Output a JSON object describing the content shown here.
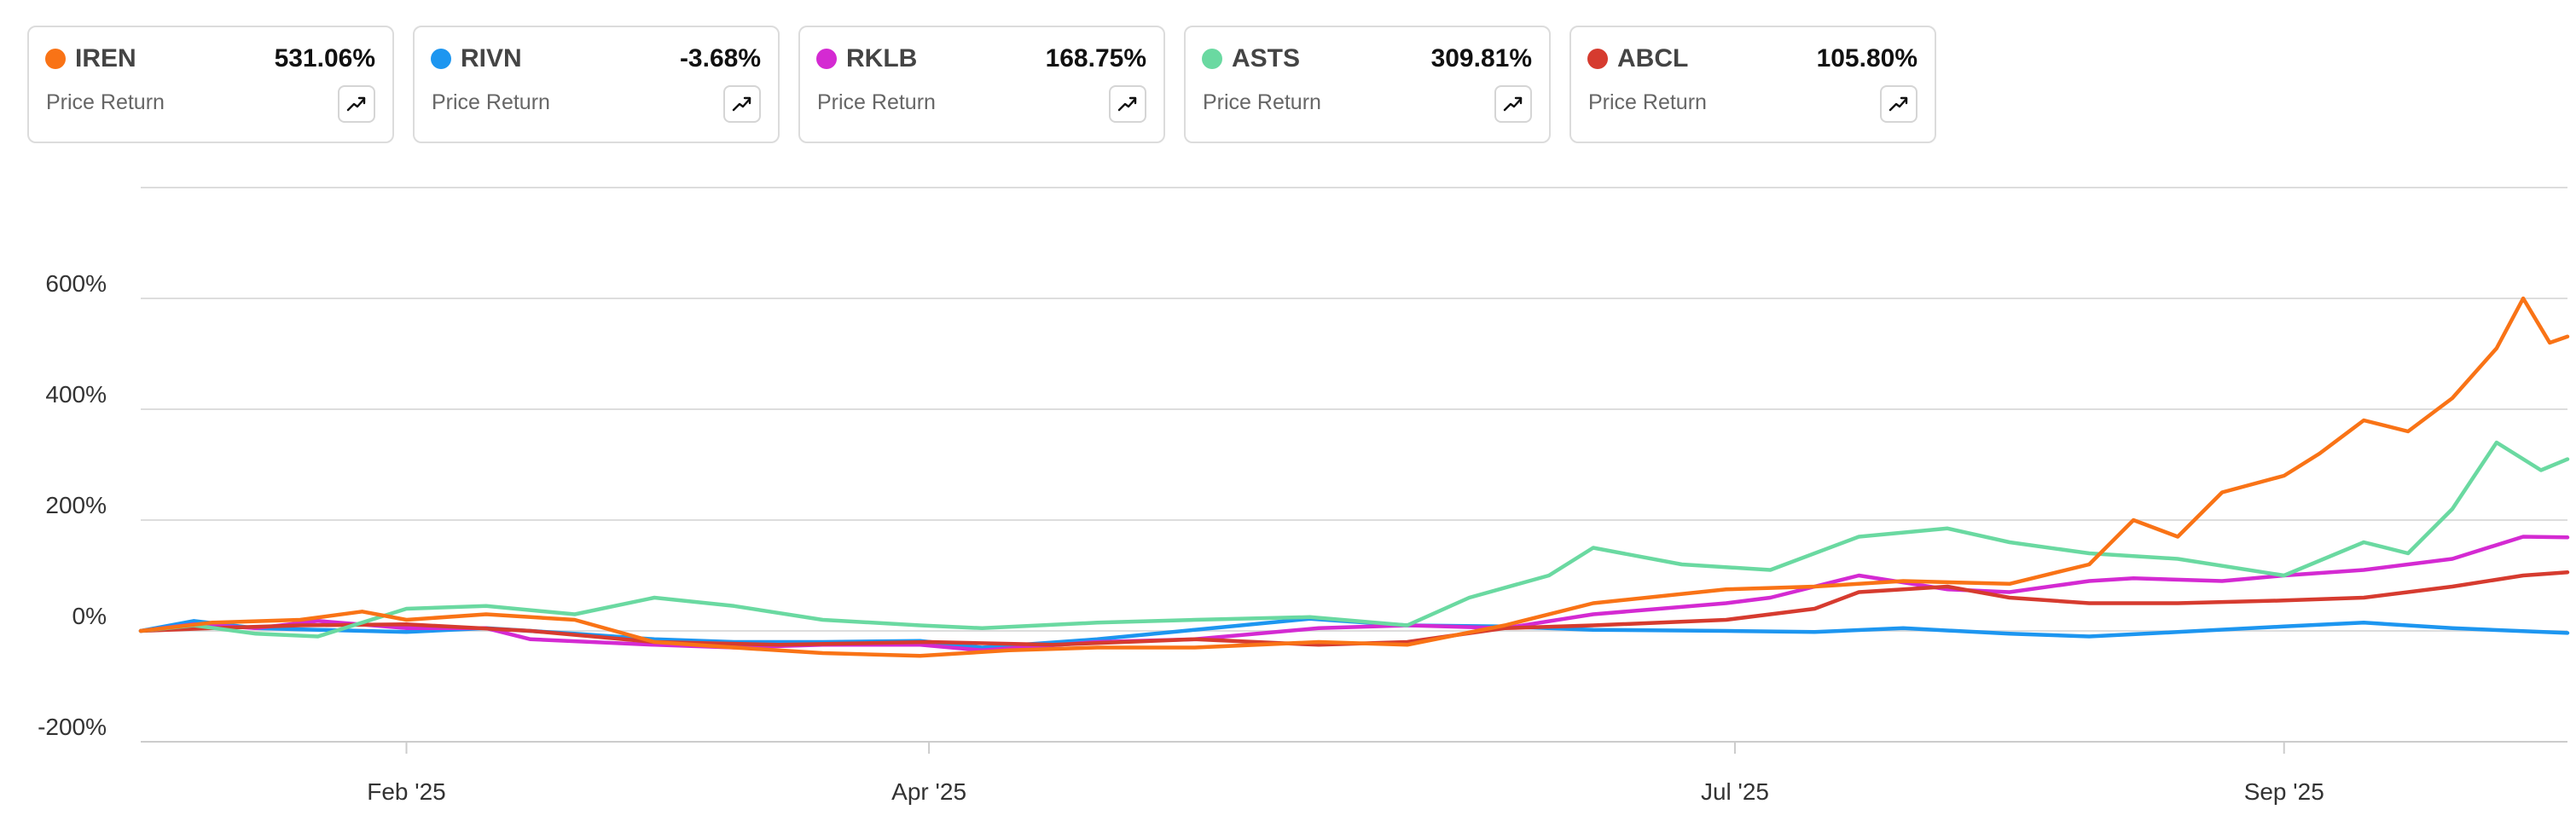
{
  "cards": [
    {
      "ticker": "IREN",
      "return": "531.06%",
      "label": "Price Return",
      "color": "#f97316",
      "icon": "trend-up-icon"
    },
    {
      "ticker": "RIVN",
      "return": "-3.68%",
      "label": "Price Return",
      "color": "#1d96f0",
      "icon": "trend-up-icon"
    },
    {
      "ticker": "RKLB",
      "return": "168.75%",
      "label": "Price Return",
      "color": "#d42ad2",
      "icon": "trend-up-icon"
    },
    {
      "ticker": "ASTS",
      "return": "309.81%",
      "label": "Price Return",
      "color": "#6ad9a1",
      "icon": "trend-up-icon"
    },
    {
      "ticker": "ABCL",
      "return": "105.80%",
      "label": "Price Return",
      "color": "#d63b2f",
      "icon": "trend-up-icon"
    }
  ],
  "chart_data": {
    "type": "line",
    "title": "",
    "xlabel": "",
    "ylabel": "",
    "ylim": [
      -200,
      800
    ],
    "yticks": [
      {
        "value": -200,
        "label": "-200%"
      },
      {
        "value": 0,
        "label": "0%"
      },
      {
        "value": 200,
        "label": "200%"
      },
      {
        "value": 400,
        "label": "400%"
      },
      {
        "value": 600,
        "label": "600%"
      }
    ],
    "xticks": [
      {
        "date": "2025-02-01",
        "label": "Feb '25"
      },
      {
        "date": "2025-04-01",
        "label": "Apr '25"
      },
      {
        "date": "2025-07-01",
        "label": "Jul '25"
      },
      {
        "date": "2025-09-01",
        "label": "Sep '25"
      }
    ],
    "xlim": [
      "2025-01-02",
      "2025-10-03"
    ],
    "grid": true,
    "legend": "top (cards)",
    "series": [
      {
        "name": "RIVN",
        "color": "#1d96f0",
        "points": [
          [
            "2025-01-02",
            0
          ],
          [
            "2025-01-08",
            18
          ],
          [
            "2025-01-15",
            5
          ],
          [
            "2025-01-22",
            2
          ],
          [
            "2025-02-01",
            -2
          ],
          [
            "2025-02-10",
            5
          ],
          [
            "2025-02-20",
            -5
          ],
          [
            "2025-03-01",
            -15
          ],
          [
            "2025-03-10",
            -20
          ],
          [
            "2025-03-20",
            -20
          ],
          [
            "2025-03-31",
            -18
          ],
          [
            "2025-04-07",
            -30
          ],
          [
            "2025-04-20",
            -15
          ],
          [
            "2025-05-01",
            2
          ],
          [
            "2025-05-14",
            22
          ],
          [
            "2025-05-25",
            10
          ],
          [
            "2025-06-05",
            8
          ],
          [
            "2025-06-15",
            2
          ],
          [
            "2025-06-30",
            0
          ],
          [
            "2025-07-10",
            -2
          ],
          [
            "2025-07-20",
            5
          ],
          [
            "2025-08-01",
            -5
          ],
          [
            "2025-08-10",
            -10
          ],
          [
            "2025-08-20",
            -2
          ],
          [
            "2025-09-01",
            8
          ],
          [
            "2025-09-10",
            15
          ],
          [
            "2025-09-20",
            5
          ],
          [
            "2025-10-03",
            -3.68
          ]
        ]
      },
      {
        "name": "RKLB",
        "color": "#d42ad2",
        "points": [
          [
            "2025-01-02",
            0
          ],
          [
            "2025-01-08",
            12
          ],
          [
            "2025-01-15",
            5
          ],
          [
            "2025-01-22",
            18
          ],
          [
            "2025-02-01",
            5
          ],
          [
            "2025-02-10",
            5
          ],
          [
            "2025-02-15",
            -15
          ],
          [
            "2025-03-01",
            -25
          ],
          [
            "2025-03-10",
            -30
          ],
          [
            "2025-03-20",
            -25
          ],
          [
            "2025-03-31",
            -25
          ],
          [
            "2025-04-07",
            -35
          ],
          [
            "2025-04-20",
            -20
          ],
          [
            "2025-05-01",
            -15
          ],
          [
            "2025-05-15",
            5
          ],
          [
            "2025-05-25",
            10
          ],
          [
            "2025-06-05",
            5
          ],
          [
            "2025-06-15",
            30
          ],
          [
            "2025-06-30",
            50
          ],
          [
            "2025-07-05",
            60
          ],
          [
            "2025-07-15",
            100
          ],
          [
            "2025-07-25",
            75
          ],
          [
            "2025-08-01",
            70
          ],
          [
            "2025-08-10",
            90
          ],
          [
            "2025-08-15",
            95
          ],
          [
            "2025-08-25",
            90
          ],
          [
            "2025-09-01",
            100
          ],
          [
            "2025-09-10",
            110
          ],
          [
            "2025-09-20",
            130
          ],
          [
            "2025-09-28",
            170
          ],
          [
            "2025-10-03",
            168.75
          ]
        ]
      },
      {
        "name": "ABCL",
        "color": "#d63b2f",
        "points": [
          [
            "2025-01-02",
            0
          ],
          [
            "2025-01-10",
            5
          ],
          [
            "2025-01-20",
            10
          ],
          [
            "2025-02-01",
            12
          ],
          [
            "2025-02-15",
            0
          ],
          [
            "2025-03-01",
            -20
          ],
          [
            "2025-03-15",
            -25
          ],
          [
            "2025-04-01",
            -20
          ],
          [
            "2025-04-15",
            -25
          ],
          [
            "2025-05-01",
            -15
          ],
          [
            "2025-05-15",
            -25
          ],
          [
            "2025-05-25",
            -20
          ],
          [
            "2025-06-05",
            5
          ],
          [
            "2025-06-15",
            10
          ],
          [
            "2025-06-30",
            20
          ],
          [
            "2025-07-10",
            40
          ],
          [
            "2025-07-15",
            70
          ],
          [
            "2025-07-25",
            80
          ],
          [
            "2025-08-01",
            60
          ],
          [
            "2025-08-10",
            50
          ],
          [
            "2025-08-20",
            50
          ],
          [
            "2025-09-01",
            55
          ],
          [
            "2025-09-10",
            60
          ],
          [
            "2025-09-20",
            80
          ],
          [
            "2025-09-28",
            100
          ],
          [
            "2025-10-03",
            105.8
          ]
        ]
      },
      {
        "name": "ASTS",
        "color": "#6ad9a1",
        "points": [
          [
            "2025-01-02",
            0
          ],
          [
            "2025-01-08",
            10
          ],
          [
            "2025-01-15",
            -5
          ],
          [
            "2025-01-22",
            -10
          ],
          [
            "2025-02-01",
            40
          ],
          [
            "2025-02-10",
            45
          ],
          [
            "2025-02-20",
            30
          ],
          [
            "2025-03-01",
            60
          ],
          [
            "2025-03-10",
            45
          ],
          [
            "2025-03-20",
            20
          ],
          [
            "2025-03-31",
            10
          ],
          [
            "2025-04-07",
            5
          ],
          [
            "2025-04-20",
            15
          ],
          [
            "2025-05-01",
            20
          ],
          [
            "2025-05-14",
            25
          ],
          [
            "2025-05-25",
            10
          ],
          [
            "2025-06-01",
            60
          ],
          [
            "2025-06-10",
            100
          ],
          [
            "2025-06-15",
            150
          ],
          [
            "2025-06-25",
            120
          ],
          [
            "2025-07-05",
            110
          ],
          [
            "2025-07-15",
            170
          ],
          [
            "2025-07-25",
            185
          ],
          [
            "2025-08-01",
            160
          ],
          [
            "2025-08-10",
            140
          ],
          [
            "2025-08-20",
            130
          ],
          [
            "2025-09-01",
            100
          ],
          [
            "2025-09-10",
            160
          ],
          [
            "2025-09-15",
            140
          ],
          [
            "2025-09-20",
            220
          ],
          [
            "2025-09-25",
            340
          ],
          [
            "2025-09-30",
            290
          ],
          [
            "2025-10-03",
            309.81
          ]
        ]
      },
      {
        "name": "IREN",
        "color": "#f97316",
        "points": [
          [
            "2025-01-02",
            0
          ],
          [
            "2025-01-10",
            15
          ],
          [
            "2025-01-20",
            20
          ],
          [
            "2025-01-27",
            35
          ],
          [
            "2025-02-01",
            20
          ],
          [
            "2025-02-10",
            30
          ],
          [
            "2025-02-20",
            20
          ],
          [
            "2025-03-01",
            -20
          ],
          [
            "2025-03-10",
            -30
          ],
          [
            "2025-03-20",
            -40
          ],
          [
            "2025-03-31",
            -45
          ],
          [
            "2025-04-10",
            -35
          ],
          [
            "2025-04-20",
            -30
          ],
          [
            "2025-05-01",
            -30
          ],
          [
            "2025-05-15",
            -20
          ],
          [
            "2025-05-25",
            -25
          ],
          [
            "2025-06-05",
            10
          ],
          [
            "2025-06-15",
            50
          ],
          [
            "2025-06-30",
            75
          ],
          [
            "2025-07-10",
            80
          ],
          [
            "2025-07-20",
            90
          ],
          [
            "2025-08-01",
            85
          ],
          [
            "2025-08-10",
            120
          ],
          [
            "2025-08-15",
            200
          ],
          [
            "2025-08-20",
            170
          ],
          [
            "2025-08-25",
            250
          ],
          [
            "2025-09-01",
            280
          ],
          [
            "2025-09-05",
            320
          ],
          [
            "2025-09-10",
            380
          ],
          [
            "2025-09-15",
            360
          ],
          [
            "2025-09-20",
            420
          ],
          [
            "2025-09-25",
            510
          ],
          [
            "2025-09-28",
            600
          ],
          [
            "2025-10-01",
            520
          ],
          [
            "2025-10-03",
            531.06
          ]
        ]
      }
    ]
  }
}
